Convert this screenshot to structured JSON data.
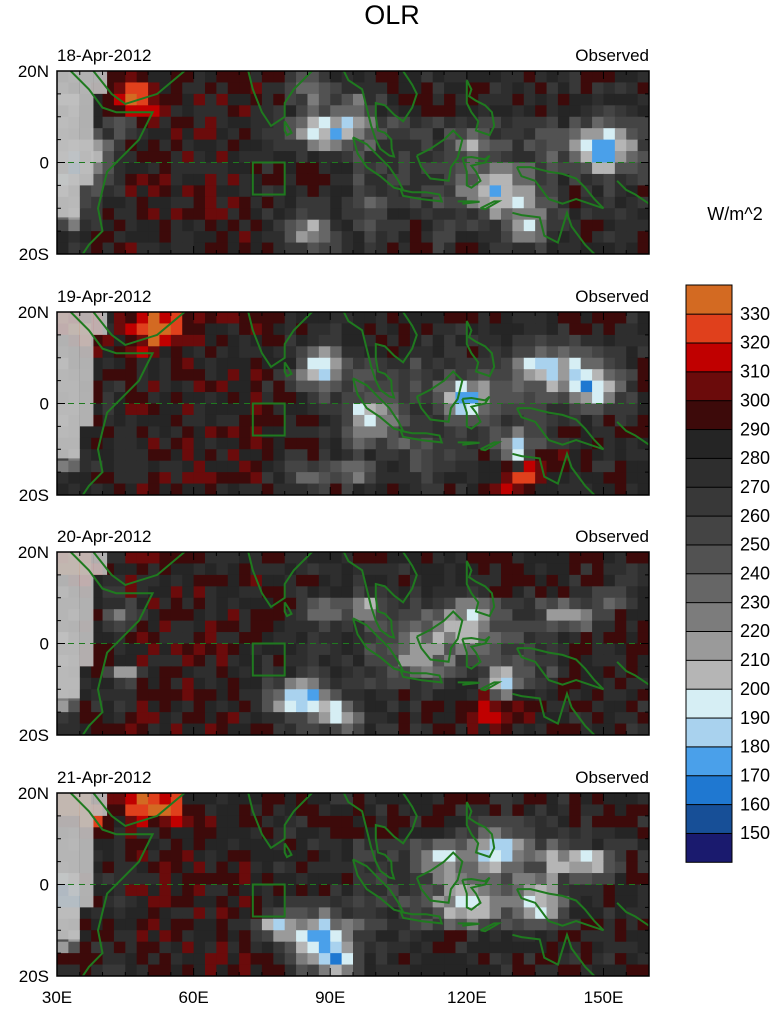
{
  "figure": {
    "title": "OLR",
    "units": "W/m^2"
  },
  "chart_data": {
    "type": "heatmap",
    "variable": "OLR",
    "units": "W/m^2",
    "lon_range": [
      30,
      160
    ],
    "lat_range": [
      -20,
      20
    ],
    "x_ticks": [
      "30E",
      "60E",
      "90E",
      "120E",
      "150E"
    ],
    "x_tick_values": [
      30,
      60,
      90,
      120,
      150
    ],
    "y_ticks": [
      "20N",
      "0",
      "20S"
    ],
    "y_tick_values": [
      20,
      0,
      -20
    ],
    "grid": false,
    "panels": [
      {
        "date": "18-Apr-2012",
        "label": "Observed"
      },
      {
        "date": "19-Apr-2012",
        "label": "Observed"
      },
      {
        "date": "20-Apr-2012",
        "label": "Observed"
      },
      {
        "date": "21-Apr-2012",
        "label": "Observed"
      }
    ],
    "colorbar": {
      "position": "right",
      "levels": [
        150,
        160,
        170,
        180,
        190,
        200,
        210,
        220,
        230,
        240,
        250,
        260,
        270,
        280,
        290,
        300,
        310,
        320,
        330
      ],
      "colors": [
        "#1a1a6e",
        "#174f97",
        "#1f78d1",
        "#4aa0ea",
        "#a9d2ee",
        "#d6eef4",
        "#b5b5b5",
        "#9a9a9a",
        "#7c7c7c",
        "#666666",
        "#525252",
        "#444444",
        "#383838",
        "#2e2e2e",
        "#252525",
        "#3d0a0a",
        "#6b0b0b",
        "#c00000",
        "#e0401c",
        "#d36a22"
      ]
    },
    "overlays": [
      "coastlines",
      "equator-dashed-line",
      "index-box-73E-80E"
    ]
  }
}
